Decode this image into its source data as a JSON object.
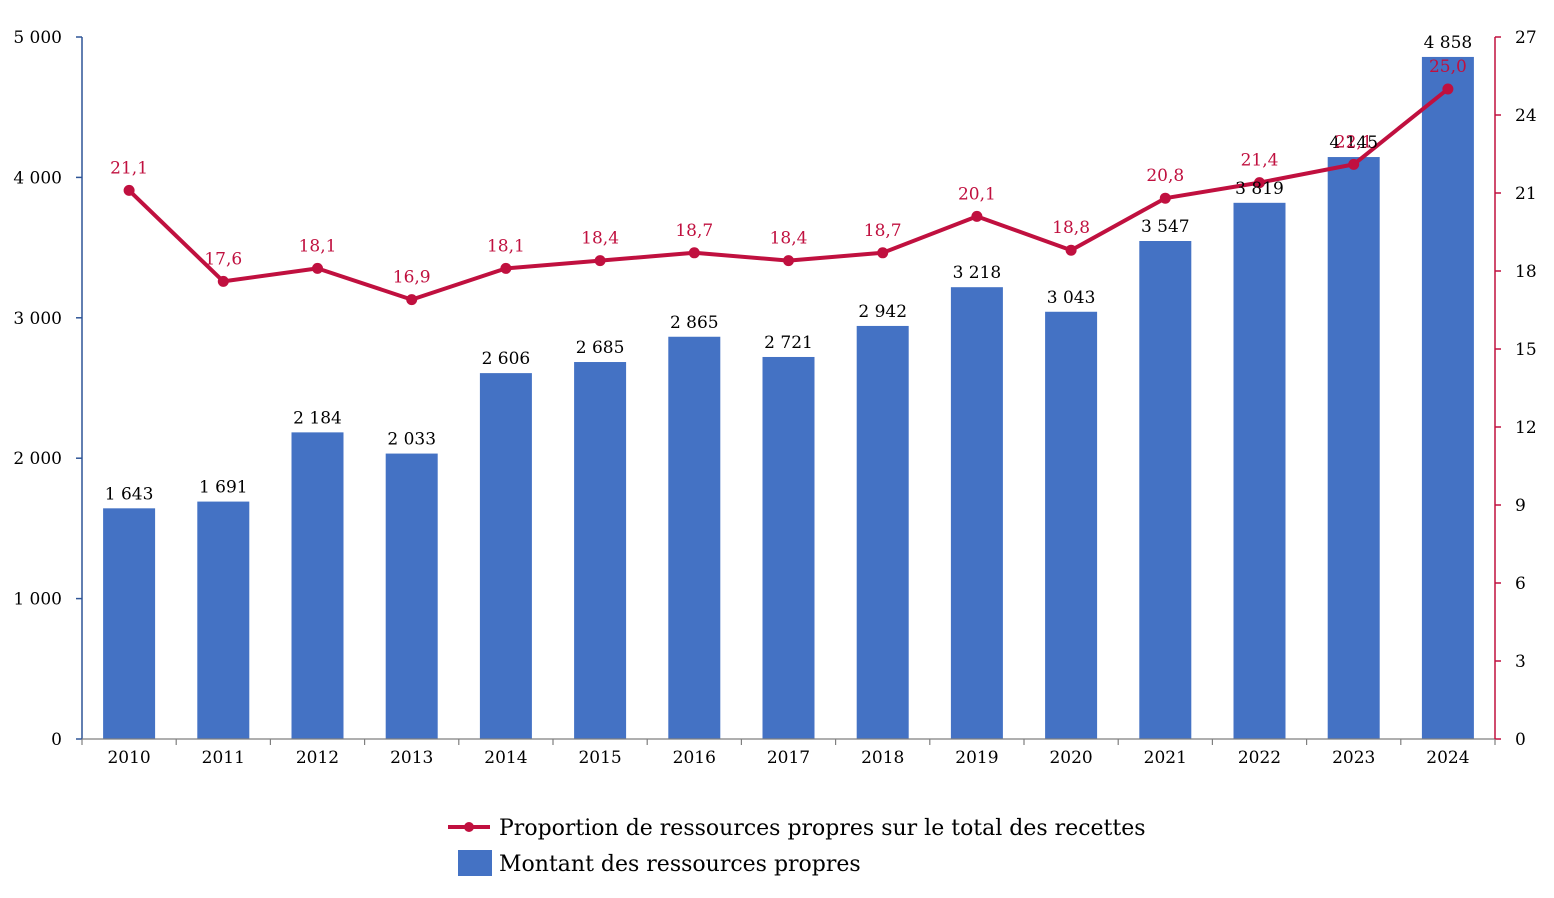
{
  "chart_data": {
    "type": "bar",
    "categories": [
      "2010",
      "2011",
      "2012",
      "2013",
      "2014",
      "2015",
      "2016",
      "2017",
      "2018",
      "2019",
      "2020",
      "2021",
      "2022",
      "2023",
      "2024"
    ],
    "series": [
      {
        "name": "Montant des ressources propres",
        "type": "bar",
        "axis": "left",
        "values": [
          1643,
          1691,
          2184,
          2033,
          2606,
          2685,
          2865,
          2721,
          2942,
          3218,
          3043,
          3547,
          3819,
          4145,
          4858
        ],
        "labels": [
          "1 643",
          "1 691",
          "2 184",
          "2 033",
          "2 606",
          "2 685",
          "2 865",
          "2 721",
          "2 942",
          "3 218",
          "3 043",
          "3 547",
          "3 819",
          "4 145",
          "4 858"
        ]
      },
      {
        "name": "Proportion de ressources propres sur le total des recettes",
        "type": "line",
        "axis": "right",
        "values": [
          21.1,
          17.6,
          18.1,
          16.9,
          18.1,
          18.4,
          18.7,
          18.4,
          18.7,
          20.1,
          18.8,
          20.8,
          21.4,
          22.1,
          25.0
        ],
        "labels": [
          "21,1",
          "17,6",
          "18,1",
          "16,9",
          "18,1",
          "18,4",
          "18,7",
          "18,4",
          "18,7",
          "20,1",
          "18,8",
          "20,8",
          "21,4",
          "22,1",
          "25,0"
        ]
      }
    ],
    "y_left": {
      "ylim": [
        0,
        5000
      ],
      "ticks": [
        0,
        1000,
        2000,
        3000,
        4000,
        5000
      ],
      "tick_labels": [
        "0",
        "1 000",
        "2 000",
        "3 000",
        "4 000",
        "5 000"
      ]
    },
    "y_right": {
      "ylim": [
        0,
        27
      ],
      "ticks": [
        0,
        3,
        6,
        9,
        12,
        15,
        18,
        21,
        24,
        27
      ],
      "tick_labels": [
        "0",
        "3",
        "6",
        "9",
        "12",
        "15",
        "18",
        "21",
        "24",
        "27"
      ]
    },
    "colors": {
      "bar": "#4472c4",
      "line": "#c0103f",
      "left_axis": "#2f5597",
      "right_axis": "#c0103f"
    },
    "grid": false,
    "legend_position": "bottom-center",
    "legend": [
      {
        "key": "line",
        "label": "Proportion de ressources propres sur le total des recettes"
      },
      {
        "key": "bar",
        "label": "Montant des ressources propres"
      }
    ]
  }
}
